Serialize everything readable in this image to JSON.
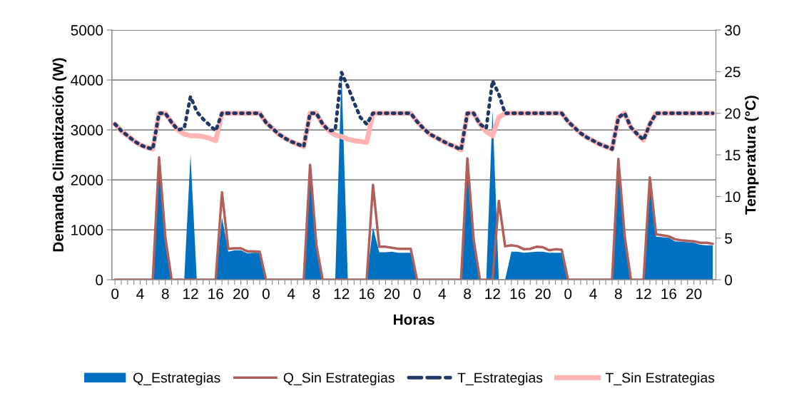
{
  "chart_data": {
    "type": "line",
    "xlabel": "Horas",
    "ylabel": "Demanda Climatización (W)",
    "y2label": "Temperatura (°C)",
    "categories": [
      "0",
      null,
      null,
      null,
      "4",
      null,
      null,
      null,
      "8",
      null,
      null,
      null,
      "12",
      null,
      null,
      null,
      "16",
      null,
      null,
      null,
      "20",
      null,
      null,
      null,
      "0",
      null,
      null,
      null,
      "4",
      null,
      null,
      null,
      "8",
      null,
      null,
      null,
      "12",
      null,
      null,
      null,
      "16",
      null,
      null,
      null,
      "20",
      null,
      null,
      null,
      "0",
      null,
      null,
      null,
      "4",
      null,
      null,
      null,
      "8",
      null,
      null,
      null,
      "12",
      null,
      null,
      null,
      "16",
      null,
      null,
      null,
      "20",
      null,
      null,
      null,
      "0",
      null,
      null,
      null,
      "4",
      null,
      null,
      null,
      "8",
      null,
      null,
      null,
      "12",
      null,
      null,
      null,
      "16",
      null,
      null,
      null,
      "20",
      null,
      null,
      null
    ],
    "series": [
      {
        "name": "Q_Estrategias",
        "type": "area",
        "color": "#0070c0",
        "values": [
          0,
          0,
          0,
          0,
          0,
          0,
          0,
          2450,
          800,
          0,
          0,
          0,
          2500,
          0,
          0,
          0,
          0,
          1250,
          560,
          590,
          590,
          530,
          540,
          540,
          0,
          0,
          0,
          0,
          0,
          0,
          0,
          2250,
          650,
          0,
          0,
          0,
          4150,
          0,
          0,
          0,
          0,
          1050,
          550,
          550,
          560,
          540,
          540,
          540,
          0,
          0,
          0,
          0,
          0,
          0,
          0,
          0,
          2380,
          750,
          0,
          0,
          3400,
          0,
          0,
          560,
          560,
          540,
          550,
          560,
          560,
          540,
          540,
          540,
          0,
          0,
          0,
          0,
          0,
          0,
          0,
          0,
          2380,
          850,
          0,
          0,
          0,
          1950,
          860,
          850,
          840,
          770,
          760,
          750,
          740,
          700,
          690,
          690
        ]
      },
      {
        "name": "Q_Sin Estrategias",
        "color": "#b0605c",
        "line_style": "solid",
        "values": [
          0,
          0,
          0,
          0,
          0,
          0,
          0,
          2450,
          850,
          0,
          0,
          0,
          0,
          0,
          0,
          0,
          0,
          1750,
          620,
          630,
          630,
          570,
          570,
          560,
          0,
          0,
          0,
          0,
          0,
          0,
          0,
          2300,
          700,
          0,
          0,
          0,
          0,
          0,
          0,
          0,
          0,
          1900,
          660,
          660,
          640,
          620,
          620,
          620,
          0,
          0,
          0,
          0,
          0,
          0,
          0,
          0,
          2430,
          800,
          0,
          0,
          0,
          1580,
          670,
          690,
          670,
          610,
          620,
          660,
          650,
          590,
          610,
          600,
          0,
          0,
          0,
          0,
          0,
          0,
          0,
          0,
          2420,
          880,
          0,
          0,
          0,
          2050,
          910,
          890,
          870,
          810,
          790,
          780,
          770,
          740,
          740,
          720
        ]
      },
      {
        "name": "T_Estrategias",
        "axis": "y2",
        "color": "#1f3864",
        "line_style": "dotted",
        "values": [
          18.7,
          17.9,
          17.3,
          16.7,
          16.2,
          15.9,
          15.7,
          20,
          20,
          18.9,
          18.0,
          18.2,
          22.0,
          20.2,
          19.3,
          18.6,
          17.9,
          20,
          20,
          20,
          20,
          20,
          20,
          20,
          18.9,
          18.2,
          17.5,
          17.0,
          16.6,
          16.3,
          16.0,
          20,
          20,
          18.7,
          17.9,
          18.0,
          24.9,
          23.2,
          21.3,
          19.5,
          18.7,
          20,
          20,
          20,
          20,
          20,
          20,
          20,
          19.0,
          18.2,
          17.5,
          17.1,
          16.7,
          16.3,
          16.0,
          15.6,
          20,
          20,
          18.7,
          18.2,
          23.9,
          22.3,
          20,
          20,
          20,
          20,
          20,
          20,
          20,
          20,
          20,
          20,
          19.0,
          18.3,
          17.6,
          17.1,
          16.7,
          16.3,
          16.0,
          15.7,
          19.5,
          20,
          18.3,
          17.5,
          16.8,
          18.7,
          20,
          20,
          20,
          20,
          20,
          20,
          20,
          20,
          20,
          20
        ]
      },
      {
        "name": "T_Sin Estrategias",
        "axis": "y2",
        "color": "#ffb3b3",
        "line_style": "solid",
        "values": [
          18.7,
          17.9,
          17.3,
          16.7,
          16.2,
          15.9,
          15.7,
          20,
          20,
          18.9,
          18.0,
          17.5,
          17.3,
          17.3,
          17.2,
          17.0,
          16.7,
          20,
          20,
          20,
          20,
          20,
          20,
          20,
          18.9,
          18.2,
          17.5,
          17.0,
          16.6,
          16.3,
          16.0,
          20,
          20,
          18.7,
          17.9,
          17.4,
          17.2,
          16.9,
          16.7,
          16.6,
          16.5,
          20,
          20,
          20,
          20,
          20,
          20,
          20,
          19.0,
          18.2,
          17.5,
          17.1,
          16.7,
          16.3,
          16.0,
          15.6,
          20,
          20,
          18.7,
          17.8,
          17.3,
          19.5,
          20,
          20,
          20,
          20,
          20,
          20,
          20,
          20,
          20,
          20,
          19.0,
          18.3,
          17.6,
          17.1,
          16.7,
          16.3,
          16.0,
          15.7,
          19.5,
          20,
          18.3,
          17.5,
          16.8,
          18.7,
          20,
          20,
          20,
          20,
          20,
          20,
          20,
          20,
          20,
          20
        ]
      }
    ],
    "ylim": [
      0,
      5000
    ],
    "yticks": [
      0,
      1000,
      2000,
      3000,
      4000,
      5000
    ],
    "y2lim": [
      0,
      30
    ],
    "y2ticks": [
      0,
      5,
      10,
      15,
      20,
      25,
      30
    ],
    "grid": "y",
    "legend": "bottom"
  }
}
